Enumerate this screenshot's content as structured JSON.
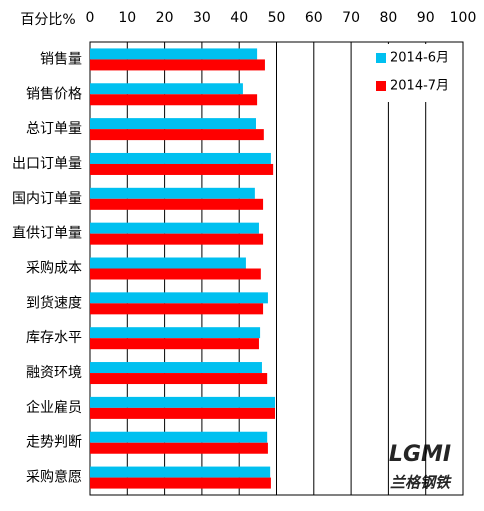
{
  "chart_data": {
    "type": "hbar",
    "x_label": "百分比%",
    "categories": [
      "销售量",
      "销售价格",
      "总订单量",
      "出口订单量",
      "国内订单量",
      "直供订单量",
      "采购成本",
      "到货速度",
      "库存水平",
      "融资环境",
      "企业雇员",
      "走势判断",
      "采购意愿"
    ],
    "series": [
      {
        "name": "2014-6月",
        "color": "#00c0f0",
        "values": [
          44.8,
          41.0,
          44.5,
          48.5,
          44.2,
          45.3,
          41.8,
          47.7,
          45.6,
          46.1,
          49.6,
          47.5,
          48.3
        ]
      },
      {
        "name": "2014-7月",
        "color": "#ff0000",
        "values": [
          46.9,
          44.8,
          46.6,
          49.1,
          46.4,
          46.4,
          45.8,
          46.4,
          45.3,
          47.5,
          49.6,
          47.7,
          48.5
        ]
      }
    ],
    "xlim": [
      0,
      100
    ],
    "xticks": [
      0,
      10,
      20,
      30,
      40,
      50,
      60,
      70,
      80,
      90,
      100
    ],
    "grid": true,
    "legend": "top-right",
    "watermark": [
      "LGMI",
      "兰格钢铁"
    ]
  }
}
